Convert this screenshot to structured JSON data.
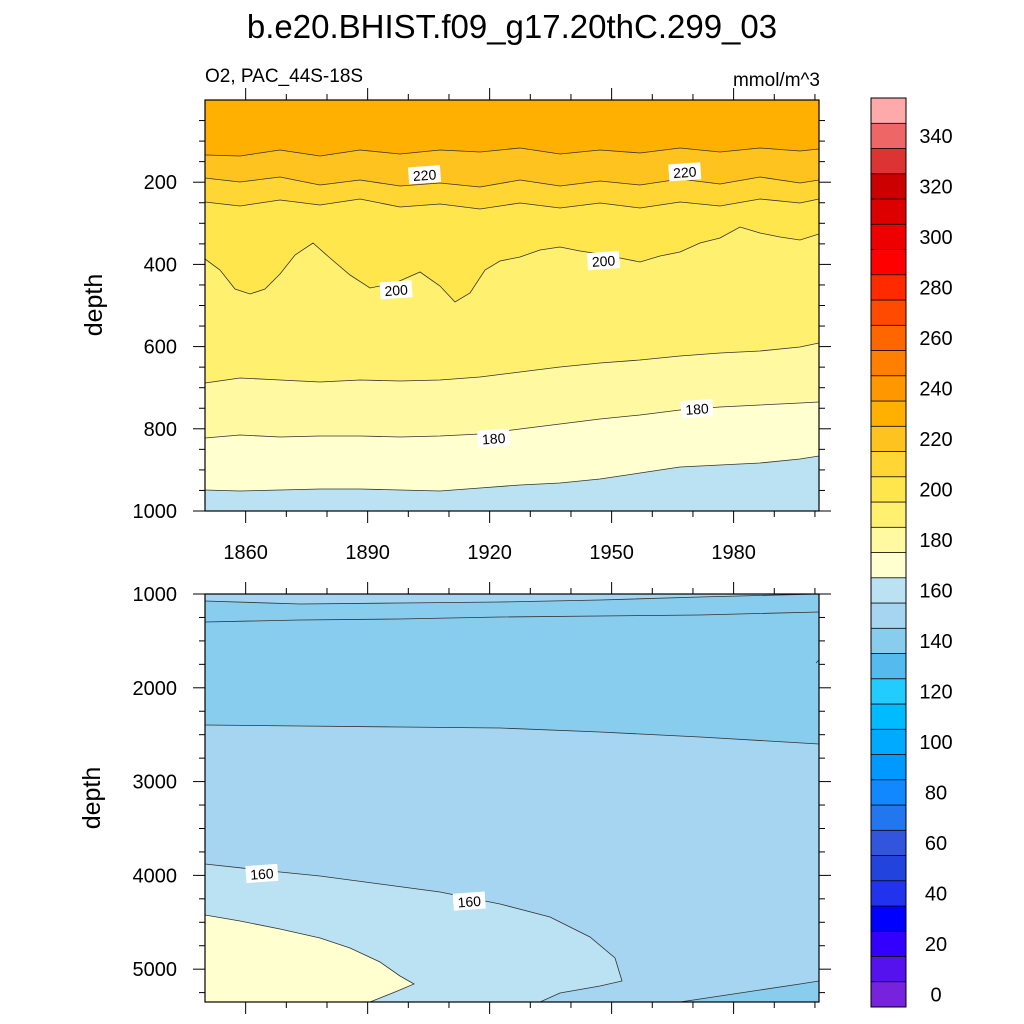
{
  "chart_data": {
    "type": "contour",
    "title": "b.e20.BHIST.f09_g17.20thC.299_03",
    "subtitle_left": "O2, PAC_44S-18S",
    "subtitle_right": "mmol/m^3",
    "x_range": [
      1850,
      2001
    ],
    "x_ticks": [
      1860,
      1890,
      1920,
      1950,
      1980
    ],
    "x_tick_labels": [
      "1860",
      "1890",
      "1920",
      "1950",
      "1980"
    ],
    "upper_panel": {
      "ylabel": "depth",
      "y_range": [
        0,
        1000
      ],
      "y_ticks": [
        200,
        400,
        600,
        800,
        1000
      ],
      "y_tick_labels": [
        "200",
        "400",
        "600",
        "800",
        "1000"
      ],
      "contour_labels": [
        {
          "text": "220",
          "year": 1904,
          "depth": 183
        },
        {
          "text": "220",
          "year": 1968,
          "depth": 176
        },
        {
          "text": "200",
          "year": 1897,
          "depth": 463
        },
        {
          "text": "200",
          "year": 1948,
          "depth": 392
        },
        {
          "text": "180",
          "year": 1921,
          "depth": 824
        },
        {
          "text": "180",
          "year": 1971,
          "depth": 752
        }
      ]
    },
    "lower_panel": {
      "ylabel": "depth",
      "y_range": [
        1000,
        5350
      ],
      "y_ticks": [
        1000,
        2000,
        3000,
        4000,
        5000
      ],
      "y_tick_labels": [
        "1000",
        "2000",
        "3000",
        "4000",
        "5000"
      ],
      "contour_labels": [
        {
          "text": "160",
          "year": 1864,
          "depth": 3985
        },
        {
          "text": "160",
          "year": 1915,
          "depth": 4280
        }
      ]
    },
    "colorbar": {
      "levels_min": -5,
      "levels_max": 355,
      "level_step": 10,
      "labels": [
        "0",
        "20",
        "40",
        "60",
        "80",
        "100",
        "120",
        "140",
        "160",
        "180",
        "200",
        "220",
        "240",
        "260",
        "280",
        "300",
        "320",
        "340"
      ],
      "label_values": [
        0,
        20,
        40,
        60,
        80,
        100,
        120,
        140,
        160,
        180,
        200,
        220,
        240,
        260,
        280,
        300,
        320,
        340
      ],
      "colors": [
        "#7722dd",
        "#5511ee",
        "#3300ff",
        "#0000ff",
        "#2233ee",
        "#2244dd",
        "#3355dd",
        "#2277ee",
        "#1188ff",
        "#0099ff",
        "#00aaff",
        "#00bbff",
        "#22ccff",
        "#55bbee",
        "#88ccee",
        "#a5d5f0",
        "#bbe2f2",
        "#ffffd0",
        "#fffaa2",
        "#fff070",
        "#ffe64d",
        "#ffd633",
        "#ffc320",
        "#ffb000",
        "#ff9800",
        "#ff8000",
        "#ff6600",
        "#ff4a00",
        "#ff2a00",
        "#ff0000",
        "#ee0000",
        "#dd0000",
        "#cc0000",
        "#dd3333",
        "#ee6666",
        "#ffaaaa"
      ]
    }
  }
}
